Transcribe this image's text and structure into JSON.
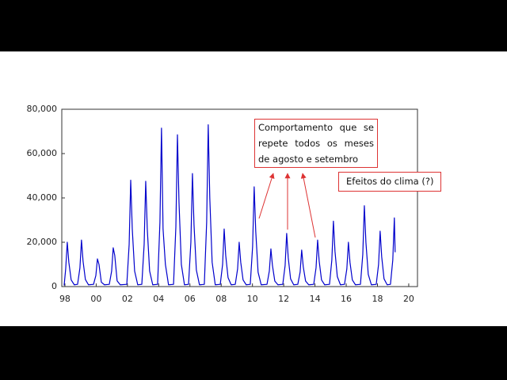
{
  "chart_data": {
    "type": "line",
    "color": "#0000cc",
    "x": [
      1997.95,
      1998.05,
      1998.15,
      1998.25,
      1998.4,
      1998.6,
      1998.81,
      1998.96,
      1999.06,
      1999.16,
      1999.31,
      1999.51,
      1999.83,
      1999.98,
      2000.08,
      2000.18,
      2000.33,
      2000.53,
      2000.84,
      2000.99,
      2001.09,
      2001.19,
      2001.34,
      2001.54,
      2001.96,
      2002.11,
      2002.21,
      2002.31,
      2002.46,
      2002.66,
      2002.92,
      2003.07,
      2003.17,
      2003.27,
      2003.42,
      2003.62,
      2003.93,
      2004.08,
      2004.18,
      2004.28,
      2004.43,
      2004.63,
      2004.95,
      2005.1,
      2005.2,
      2005.3,
      2005.45,
      2005.65,
      2005.91,
      2006.06,
      2006.16,
      2006.26,
      2006.41,
      2006.61,
      2006.92,
      2007.07,
      2007.17,
      2007.27,
      2007.42,
      2007.62,
      2007.94,
      2008.09,
      2008.19,
      2008.29,
      2008.44,
      2008.64,
      2008.9,
      2009.05,
      2009.15,
      2009.25,
      2009.4,
      2009.6,
      2009.86,
      2010.01,
      2010.11,
      2010.21,
      2010.36,
      2010.56,
      2010.93,
      2011.08,
      2011.18,
      2011.28,
      2011.43,
      2011.63,
      2011.94,
      2012.09,
      2012.19,
      2012.29,
      2012.44,
      2012.64,
      2012.9,
      2013.05,
      2013.15,
      2013.25,
      2013.4,
      2013.6,
      2013.92,
      2014.07,
      2014.17,
      2014.27,
      2014.42,
      2014.62,
      2014.93,
      2015.08,
      2015.18,
      2015.28,
      2015.43,
      2015.63,
      2015.89,
      2016.04,
      2016.14,
      2016.24,
      2016.39,
      2016.59,
      2016.91,
      2017.06,
      2017.16,
      2017.26,
      2017.41,
      2017.61,
      2017.92,
      2018.07,
      2018.17,
      2018.27,
      2018.42,
      2018.62,
      2018.83,
      2018.98,
      2019.08,
      2019.13
    ],
    "values": [
      500,
      8000,
      20000,
      11000,
      3000,
      800,
      1000,
      8400,
      21000,
      11500,
      3200,
      800,
      1000,
      5000,
      12500,
      10000,
      2000,
      800,
      1000,
      7000,
      17500,
      14000,
      2600,
      800,
      1000,
      19000,
      48000,
      26000,
      7000,
      800,
      1000,
      19000,
      47500,
      26000,
      7000,
      800,
      1000,
      29000,
      71500,
      26000,
      10000,
      800,
      1000,
      27000,
      68500,
      38000,
      10000,
      800,
      1000,
      20000,
      51000,
      28000,
      7500,
      800,
      1000,
      29000,
      73000,
      40000,
      11000,
      800,
      1000,
      10000,
      26000,
      14000,
      4000,
      800,
      1000,
      8000,
      20000,
      11000,
      3000,
      800,
      1000,
      18000,
      45000,
      25000,
      6500,
      800,
      1000,
      7000,
      17000,
      9500,
      2500,
      800,
      1000,
      9500,
      24000,
      13000,
      3500,
      800,
      1000,
      6500,
      16500,
      9000,
      2500,
      800,
      1000,
      8500,
      21000,
      11500,
      3000,
      800,
      1000,
      12000,
      29500,
      16000,
      4500,
      800,
      1000,
      8000,
      20000,
      11000,
      3000,
      800,
      1000,
      14500,
      36500,
      20000,
      5500,
      800,
      1000,
      10000,
      25000,
      13500,
      3500,
      800,
      1000,
      12000,
      31000,
      15500
    ],
    "xlim": [
      1997.8,
      2020.56
    ],
    "xticks": [
      {
        "value": 1998,
        "label": "98"
      },
      {
        "value": 2000,
        "label": "00"
      },
      {
        "value": 2002,
        "label": "02"
      },
      {
        "value": 2004,
        "label": "04"
      },
      {
        "value": 2006,
        "label": "06"
      },
      {
        "value": 2008,
        "label": "08"
      },
      {
        "value": 2010,
        "label": "10"
      },
      {
        "value": 2012,
        "label": "12"
      },
      {
        "value": 2014,
        "label": "14"
      },
      {
        "value": 2016,
        "label": "16"
      },
      {
        "value": 2018,
        "label": "18"
      },
      {
        "value": 2020,
        "label": "20"
      }
    ],
    "ylim": [
      0,
      80000
    ],
    "yticks": [
      {
        "value": 0,
        "label": "0"
      },
      {
        "value": 20000,
        "label": "20,000"
      },
      {
        "value": 40000,
        "label": "40,000"
      },
      {
        "value": 60000,
        "label": "60,000"
      },
      {
        "value": 80000,
        "label": "80,000"
      }
    ],
    "annotations": [
      "Comportamento que se repete todos os meses de agosto e setembro",
      "Efeitos do clima (?)"
    ]
  }
}
